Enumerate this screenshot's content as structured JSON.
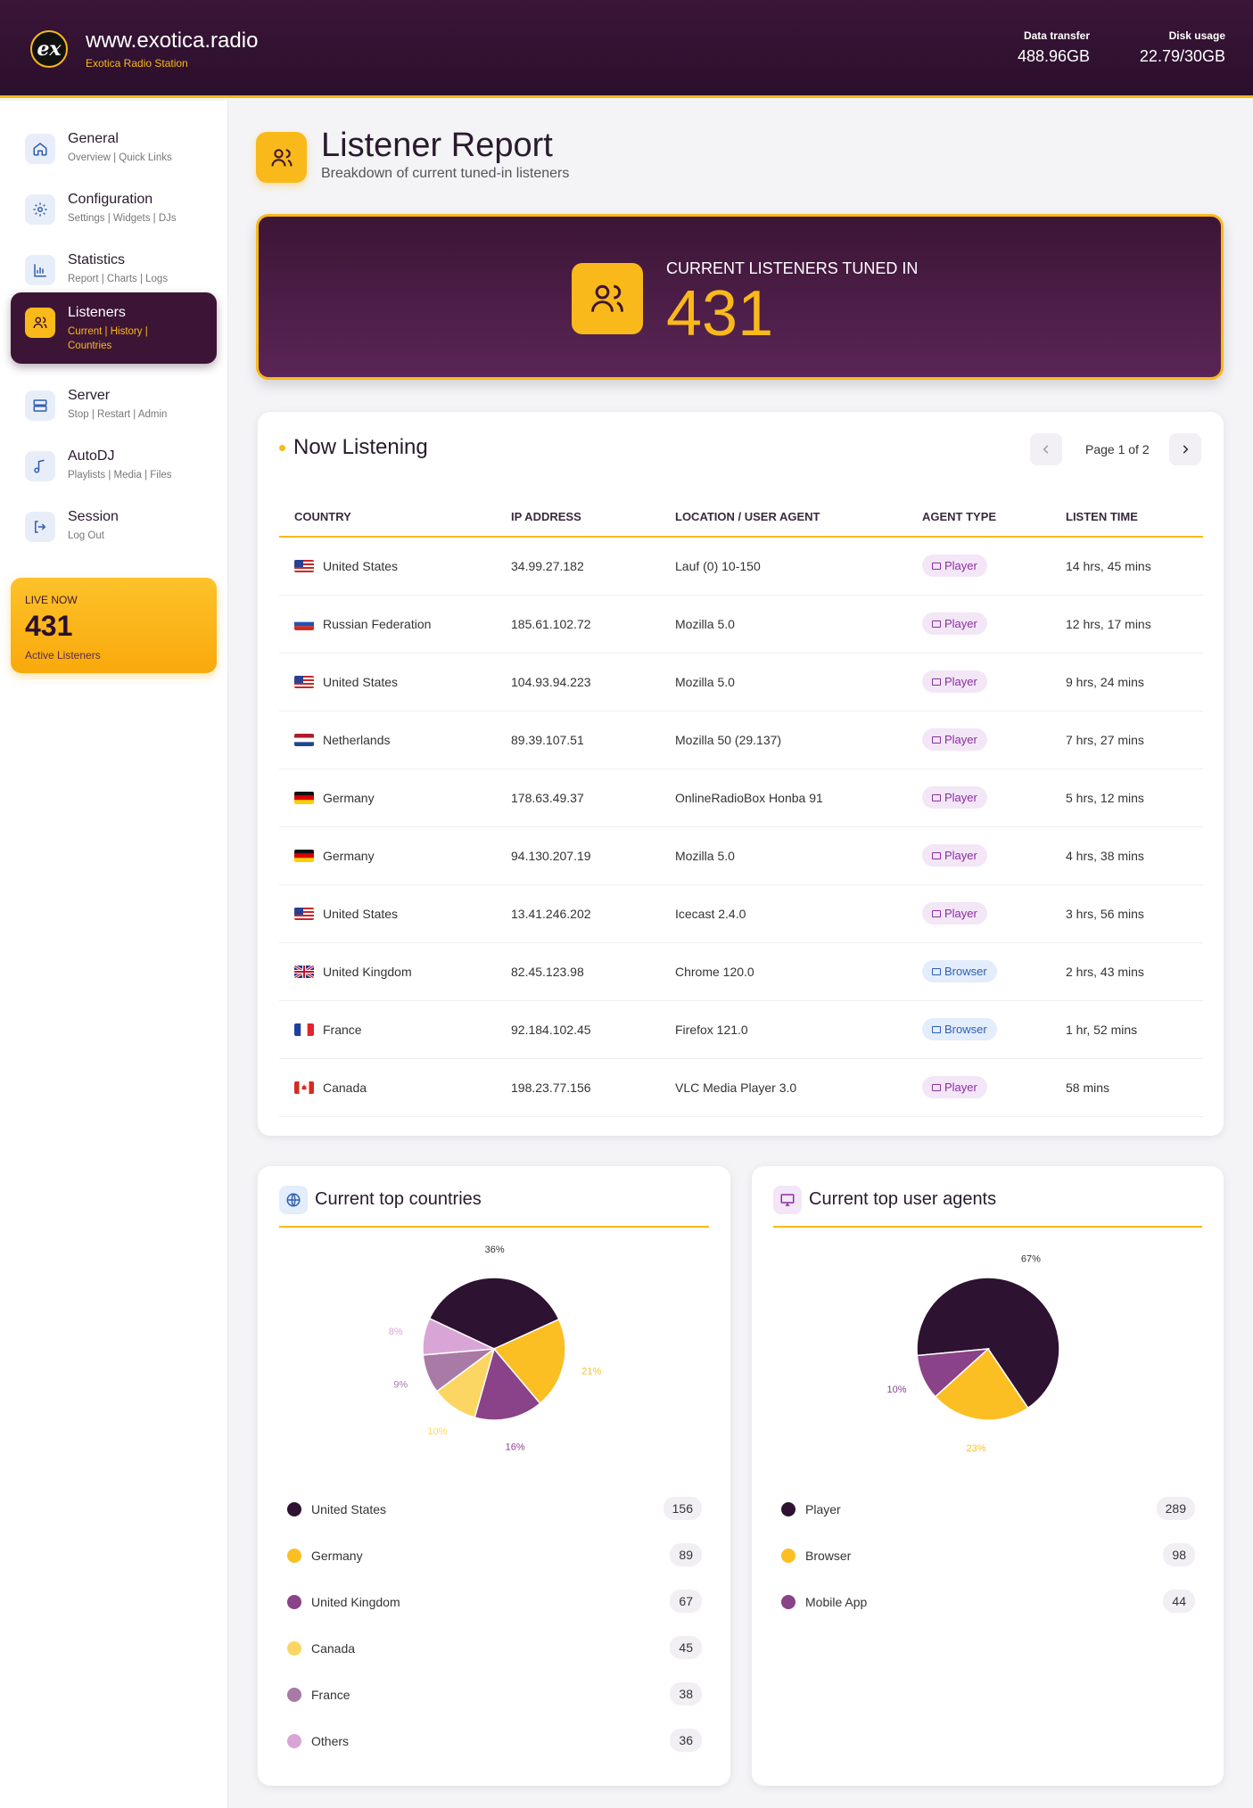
{
  "header": {
    "logo_text": "ex",
    "site_name": "www.exotica.radio",
    "site_sub": "Exotica Radio Station",
    "data_transfer_label": "Data transfer",
    "data_transfer_value": "488.96GB",
    "disk_usage_label": "Disk usage",
    "disk_usage_value": "22.79/30GB"
  },
  "sidebar": {
    "items": [
      {
        "title": "General",
        "sub": "Overview | Quick Links",
        "icon": "home-icon"
      },
      {
        "title": "Configuration",
        "sub": "Settings | Widgets | DJs",
        "icon": "gear-icon"
      },
      {
        "title": "Statistics",
        "sub": "Report | Charts | Logs",
        "icon": "bar-chart-icon"
      },
      {
        "title": "Listeners",
        "sub": "Current | History | Countries",
        "icon": "users-icon",
        "active": true
      },
      {
        "title": "Server",
        "sub": "Stop | Restart | Admin",
        "icon": "server-icon"
      },
      {
        "title": "AutoDJ",
        "sub": "Playlists | Media | Files",
        "icon": "music-note-icon"
      },
      {
        "title": "Session",
        "sub": "Log Out",
        "icon": "logout-icon"
      }
    ],
    "live": {
      "label": "LIVE NOW",
      "value": "431",
      "sub": "Active Listeners"
    }
  },
  "page": {
    "title": "Listener Report",
    "subtitle": "Breakdown of current tuned-in listeners"
  },
  "hero": {
    "label": "CURRENT LISTENERS TUNED IN",
    "value": "431"
  },
  "now_listening": {
    "title": "Now Listening",
    "page_text": "Page 1 of 2",
    "columns": [
      "COUNTRY",
      "IP ADDRESS",
      "LOCATION / USER AGENT",
      "AGENT TYPE",
      "LISTEN TIME"
    ],
    "rows": [
      {
        "flag": "us",
        "country": "United States",
        "ip": "34.99.27.182",
        "agent": "Lauf (0) 10-150",
        "type": "Player",
        "time": "14 hrs, 45 mins"
      },
      {
        "flag": "ru",
        "country": "Russian Federation",
        "ip": "185.61.102.72",
        "agent": "Mozilla 5.0",
        "type": "Player",
        "time": "12 hrs, 17 mins"
      },
      {
        "flag": "us",
        "country": "United States",
        "ip": "104.93.94.223",
        "agent": "Mozilla 5.0",
        "type": "Player",
        "time": "9 hrs, 24 mins"
      },
      {
        "flag": "nl",
        "country": "Netherlands",
        "ip": "89.39.107.51",
        "agent": "Mozilla 50 (29.137)",
        "type": "Player",
        "time": "7 hrs, 27 mins"
      },
      {
        "flag": "de",
        "country": "Germany",
        "ip": "178.63.49.37",
        "agent": "OnlineRadioBox Honba 91",
        "type": "Player",
        "time": "5 hrs, 12 mins"
      },
      {
        "flag": "de",
        "country": "Germany",
        "ip": "94.130.207.19",
        "agent": "Mozilla 5.0",
        "type": "Player",
        "time": "4 hrs, 38 mins"
      },
      {
        "flag": "us",
        "country": "United States",
        "ip": "13.41.246.202",
        "agent": "Icecast 2.4.0",
        "type": "Player",
        "time": "3 hrs, 56 mins"
      },
      {
        "flag": "gb",
        "country": "United Kingdom",
        "ip": "82.45.123.98",
        "agent": "Chrome 120.0",
        "type": "Browser",
        "time": "2 hrs, 43 mins"
      },
      {
        "flag": "fr",
        "country": "France",
        "ip": "92.184.102.45",
        "agent": "Firefox 121.0",
        "type": "Browser",
        "time": "1 hr, 52 mins"
      },
      {
        "flag": "ca",
        "country": "Canada",
        "ip": "198.23.77.156",
        "agent": "VLC Media Player 3.0",
        "type": "Player",
        "time": "58 mins"
      }
    ]
  },
  "colors": {
    "accent": "#f9b91a",
    "brand_dark": "#3c1536"
  },
  "chart_data": [
    {
      "type": "pie",
      "title": "Current top countries",
      "categories": [
        "United States",
        "Germany",
        "United Kingdom",
        "Canada",
        "France",
        "Others"
      ],
      "values": [
        156,
        89,
        67,
        45,
        38,
        36
      ],
      "percent_labels": [
        "36%",
        "21%",
        "16%",
        "10%",
        "9%",
        "8%"
      ],
      "colors": [
        "#2e1231",
        "#fbbf24",
        "#8a4288",
        "#fcd663",
        "#a97aa6",
        "#d9a5d6"
      ]
    },
    {
      "type": "pie",
      "title": "Current top user agents",
      "categories": [
        "Player",
        "Browser",
        "Mobile App"
      ],
      "values": [
        289,
        98,
        44
      ],
      "percent_labels": [
        "67%",
        "23%",
        "10%"
      ],
      "colors": [
        "#2e1231",
        "#fbbf24",
        "#8a4288"
      ]
    }
  ]
}
